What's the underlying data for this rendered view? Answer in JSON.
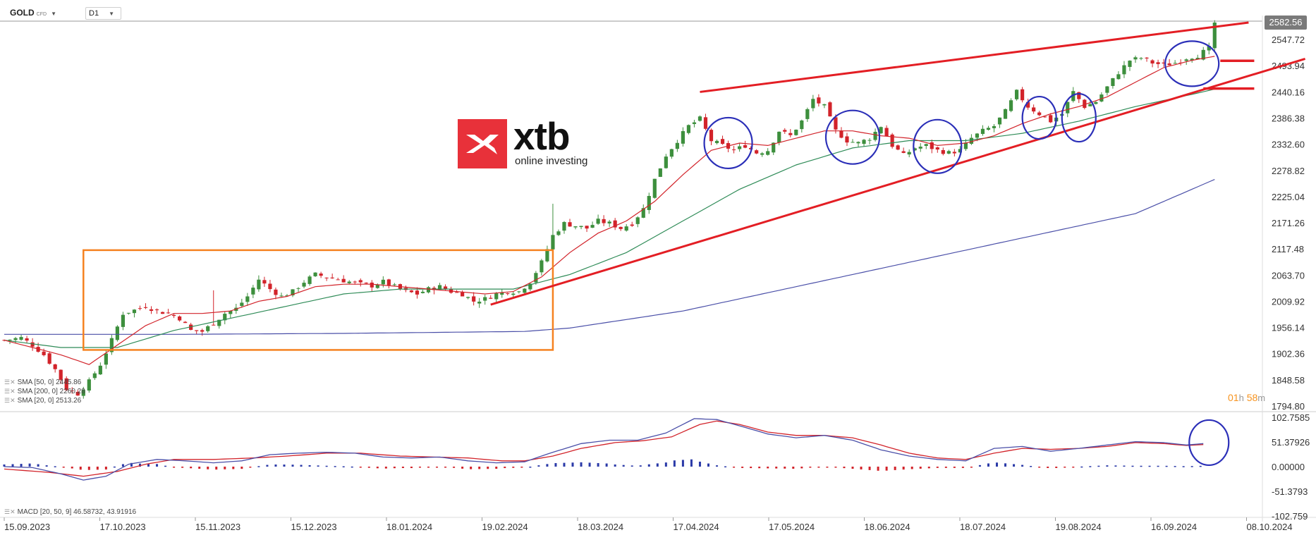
{
  "header": {
    "symbol": "GOLD",
    "symbol_sub": "CFD",
    "timeframe": "D1"
  },
  "price_tag": "2582.56",
  "timer": {
    "hours": "01",
    "h_unit": "h",
    "minutes": "58",
    "m_unit": "m"
  },
  "brand": {
    "name": "xtb",
    "tagline": "online investing"
  },
  "legend": [
    {
      "label": "SMA [50, 0] 2445.86"
    },
    {
      "label": "SMA [200, 0] 2260.28"
    },
    {
      "label": "SMA [20, 0] 2513.26"
    }
  ],
  "macd_label": "MACD [20, 50, 9] 46.58732, 43.91916",
  "colors": {
    "up": "#3d8f3d",
    "down": "#d2232a",
    "sma20": "#d2232a",
    "sma50": "#2e8b57",
    "sma200": "#4a4fa8",
    "trend": "#e31e24",
    "box": "#f58220",
    "circle": "#2b2fb8",
    "macd": "#4a4fa8",
    "signal": "#d2232a",
    "hist_pos": "#2b3aa8",
    "hist_neg": "#d2232a"
  },
  "chart_data": [
    {
      "type": "candlestick",
      "title": "GOLD D1",
      "x_ticks": [
        "15.09.2023",
        "17.10.2023",
        "15.11.2023",
        "15.12.2023",
        "18.01.2024",
        "19.02.2024",
        "18.03.2024",
        "17.04.2024",
        "17.05.2024",
        "18.06.2024",
        "18.07.2024",
        "19.08.2024",
        "16.09.2024",
        "08.10.2024"
      ],
      "y_ticks": [
        "2582.56",
        "2547.72",
        "2493.94",
        "2440.16",
        "2386.38",
        "2332.60",
        "2278.82",
        "2225.04",
        "2171.26",
        "2117.48",
        "2063.70",
        "2009.92",
        "1956.14",
        "1902.36",
        "1848.58",
        "1794.80"
      ],
      "ylim": [
        1794.8,
        2582.56
      ],
      "close_path": [
        [
          0,
          1930
        ],
        [
          3,
          1935
        ],
        [
          5,
          1920
        ],
        [
          7,
          1900
        ],
        [
          9,
          1870
        ],
        [
          11,
          1830
        ],
        [
          13,
          1820
        ],
        [
          15,
          1845
        ],
        [
          17,
          1880
        ],
        [
          19,
          1930
        ],
        [
          21,
          1985
        ],
        [
          23,
          1992
        ],
        [
          25,
          2000
        ],
        [
          27,
          1990
        ],
        [
          29,
          1985
        ],
        [
          31,
          1975
        ],
        [
          33,
          1950
        ],
        [
          35,
          1948
        ],
        [
          37,
          1965
        ],
        [
          39,
          1985
        ],
        [
          41,
          1995
        ],
        [
          43,
          2020
        ],
        [
          45,
          2055
        ],
        [
          47,
          2035
        ],
        [
          49,
          2020
        ],
        [
          51,
          2030
        ],
        [
          53,
          2050
        ],
        [
          55,
          2065
        ],
        [
          57,
          2060
        ],
        [
          59,
          2055
        ],
        [
          61,
          2050
        ],
        [
          63,
          2045
        ],
        [
          65,
          2042
        ],
        [
          67,
          2050
        ],
        [
          69,
          2040
        ],
        [
          71,
          2030
        ],
        [
          73,
          2025
        ],
        [
          75,
          2035
        ],
        [
          77,
          2040
        ],
        [
          79,
          2030
        ],
        [
          81,
          2025
        ],
        [
          83,
          2010
        ],
        [
          85,
          2015
        ],
        [
          87,
          2025
        ],
        [
          89,
          2030
        ],
        [
          91,
          2030
        ],
        [
          93,
          2050
        ],
        [
          95,
          2090
        ],
        [
          97,
          2145
        ],
        [
          99,
          2170
        ],
        [
          101,
          2165
        ],
        [
          103,
          2160
        ],
        [
          105,
          2175
        ],
        [
          107,
          2170
        ],
        [
          109,
          2160
        ],
        [
          111,
          2170
        ],
        [
          113,
          2200
        ],
        [
          115,
          2260
        ],
        [
          117,
          2310
        ],
        [
          119,
          2340
        ],
        [
          121,
          2370
        ],
        [
          123,
          2385
        ],
        [
          125,
          2340
        ],
        [
          127,
          2330
        ],
        [
          129,
          2320
        ],
        [
          131,
          2330
        ],
        [
          133,
          2315
        ],
        [
          135,
          2320
        ],
        [
          137,
          2360
        ],
        [
          139,
          2350
        ],
        [
          141,
          2380
        ],
        [
          143,
          2425
        ],
        [
          145,
          2410
        ],
        [
          147,
          2360
        ],
        [
          149,
          2340
        ],
        [
          151,
          2335
        ],
        [
          153,
          2345
        ],
        [
          155,
          2370
        ],
        [
          157,
          2330
        ],
        [
          159,
          2310
        ],
        [
          161,
          2325
        ],
        [
          163,
          2330
        ],
        [
          165,
          2320
        ],
        [
          167,
          2315
        ],
        [
          169,
          2320
        ],
        [
          171,
          2345
        ],
        [
          173,
          2360
        ],
        [
          175,
          2370
        ],
        [
          177,
          2400
        ],
        [
          179,
          2440
        ],
        [
          181,
          2410
        ],
        [
          183,
          2395
        ],
        [
          185,
          2380
        ],
        [
          187,
          2395
        ],
        [
          189,
          2440
        ],
        [
          191,
          2410
        ],
        [
          193,
          2420
        ],
        [
          195,
          2450
        ],
        [
          197,
          2480
        ],
        [
          199,
          2505
        ],
        [
          201,
          2510
        ],
        [
          203,
          2500
        ],
        [
          205,
          2495
        ],
        [
          207,
          2500
        ],
        [
          209,
          2510
        ],
        [
          211,
          2515
        ],
        [
          213,
          2530
        ],
        [
          214,
          2582.56
        ]
      ],
      "sma20_path": [
        [
          0,
          1930
        ],
        [
          10,
          1900
        ],
        [
          15,
          1880
        ],
        [
          20,
          1920
        ],
        [
          25,
          1960
        ],
        [
          30,
          1985
        ],
        [
          35,
          1985
        ],
        [
          40,
          1990
        ],
        [
          45,
          2010
        ],
        [
          50,
          2020
        ],
        [
          55,
          2040
        ],
        [
          60,
          2045
        ],
        [
          65,
          2045
        ],
        [
          70,
          2040
        ],
        [
          75,
          2035
        ],
        [
          80,
          2030
        ],
        [
          85,
          2025
        ],
        [
          90,
          2030
        ],
        [
          95,
          2060
        ],
        [
          100,
          2110
        ],
        [
          105,
          2150
        ],
        [
          110,
          2175
        ],
        [
          115,
          2215
        ],
        [
          120,
          2270
        ],
        [
          125,
          2320
        ],
        [
          130,
          2335
        ],
        [
          135,
          2330
        ],
        [
          140,
          2345
        ],
        [
          145,
          2360
        ],
        [
          150,
          2360
        ],
        [
          155,
          2350
        ],
        [
          160,
          2345
        ],
        [
          165,
          2330
        ],
        [
          170,
          2335
        ],
        [
          175,
          2350
        ],
        [
          180,
          2375
        ],
        [
          185,
          2395
        ],
        [
          190,
          2410
        ],
        [
          195,
          2430
        ],
        [
          200,
          2460
        ],
        [
          205,
          2490
        ],
        [
          210,
          2505
        ],
        [
          214,
          2513.26
        ]
      ],
      "sma50_path": [
        [
          0,
          1930
        ],
        [
          10,
          1915
        ],
        [
          20,
          1915
        ],
        [
          30,
          1950
        ],
        [
          40,
          1975
        ],
        [
          50,
          2000
        ],
        [
          60,
          2025
        ],
        [
          70,
          2035
        ],
        [
          80,
          2035
        ],
        [
          90,
          2035
        ],
        [
          100,
          2065
        ],
        [
          110,
          2110
        ],
        [
          120,
          2175
        ],
        [
          130,
          2240
        ],
        [
          140,
          2290
        ],
        [
          150,
          2325
        ],
        [
          160,
          2340
        ],
        [
          170,
          2340
        ],
        [
          180,
          2355
        ],
        [
          190,
          2380
        ],
        [
          200,
          2410
        ],
        [
          210,
          2435
        ],
        [
          214,
          2445.86
        ]
      ],
      "sma200_path": [
        [
          0,
          1942
        ],
        [
          30,
          1942
        ],
        [
          60,
          1944
        ],
        [
          92,
          1948
        ],
        [
          100,
          1955
        ],
        [
          120,
          1990
        ],
        [
          140,
          2040
        ],
        [
          160,
          2090
        ],
        [
          180,
          2140
        ],
        [
          200,
          2190
        ],
        [
          214,
          2260.28
        ]
      ],
      "annotations": {
        "trendline_upper": [
          [
            123,
            2440
          ],
          [
            220,
            2582.56
          ]
        ],
        "trendline_lower": [
          [
            86,
            2003
          ],
          [
            230,
            2508
          ]
        ],
        "range_box": {
          "x": [
            14,
            97
          ],
          "y": [
            1910,
            2115
          ]
        },
        "circles": [
          [
            128,
            2335
          ],
          [
            150,
            2347
          ],
          [
            165,
            2328
          ],
          [
            183,
            2387
          ],
          [
            190,
            2387
          ],
          [
            210,
            2498
          ]
        ],
        "levels": [
          [
            2504,
            215,
            221
          ],
          [
            2447,
            212,
            221
          ]
        ]
      }
    },
    {
      "type": "macd",
      "title": "MACD [20, 50, 9]",
      "y_ticks": [
        "102.7585",
        "51.37926",
        "0.00000",
        "-51.3793",
        "-102.759"
      ],
      "ylim": [
        -102.7585,
        102.7585
      ],
      "macd_path": [
        [
          0,
          0
        ],
        [
          5,
          -2
        ],
        [
          10,
          -15
        ],
        [
          14,
          -28
        ],
        [
          18,
          -20
        ],
        [
          22,
          5
        ],
        [
          27,
          15
        ],
        [
          32,
          12
        ],
        [
          37,
          8
        ],
        [
          42,
          12
        ],
        [
          47,
          25
        ],
        [
          52,
          28
        ],
        [
          57,
          30
        ],
        [
          62,
          28
        ],
        [
          67,
          20
        ],
        [
          72,
          18
        ],
        [
          77,
          20
        ],
        [
          82,
          12
        ],
        [
          87,
          8
        ],
        [
          92,
          10
        ],
        [
          97,
          30
        ],
        [
          102,
          48
        ],
        [
          107,
          55
        ],
        [
          112,
          55
        ],
        [
          117,
          70
        ],
        [
          122,
          100
        ],
        [
          126,
          98
        ],
        [
          130,
          85
        ],
        [
          135,
          68
        ],
        [
          140,
          60
        ],
        [
          145,
          65
        ],
        [
          150,
          55
        ],
        [
          155,
          35
        ],
        [
          160,
          22
        ],
        [
          165,
          15
        ],
        [
          170,
          12
        ],
        [
          175,
          38
        ],
        [
          180,
          42
        ],
        [
          185,
          32
        ],
        [
          190,
          38
        ],
        [
          195,
          45
        ],
        [
          200,
          52
        ],
        [
          205,
          50
        ],
        [
          209,
          45
        ],
        [
          212,
          48
        ]
      ],
      "signal_path": [
        [
          0,
          -5
        ],
        [
          8,
          -12
        ],
        [
          14,
          -20
        ],
        [
          20,
          -10
        ],
        [
          25,
          5
        ],
        [
          30,
          15
        ],
        [
          37,
          15
        ],
        [
          44,
          18
        ],
        [
          50,
          22
        ],
        [
          57,
          28
        ],
        [
          63,
          28
        ],
        [
          70,
          22
        ],
        [
          76,
          20
        ],
        [
          82,
          18
        ],
        [
          88,
          12
        ],
        [
          92,
          12
        ],
        [
          97,
          22
        ],
        [
          102,
          38
        ],
        [
          108,
          50
        ],
        [
          113,
          54
        ],
        [
          118,
          62
        ],
        [
          123,
          88
        ],
        [
          126,
          95
        ],
        [
          130,
          88
        ],
        [
          135,
          72
        ],
        [
          140,
          65
        ],
        [
          145,
          65
        ],
        [
          150,
          60
        ],
        [
          155,
          45
        ],
        [
          160,
          28
        ],
        [
          165,
          18
        ],
        [
          170,
          15
        ],
        [
          175,
          28
        ],
        [
          180,
          38
        ],
        [
          185,
          36
        ],
        [
          190,
          38
        ],
        [
          195,
          42
        ],
        [
          200,
          50
        ],
        [
          205,
          48
        ],
        [
          209,
          44
        ],
        [
          212,
          46
        ]
      ],
      "annotations": {
        "circles": [
          [
            213,
            50
          ]
        ]
      }
    }
  ]
}
